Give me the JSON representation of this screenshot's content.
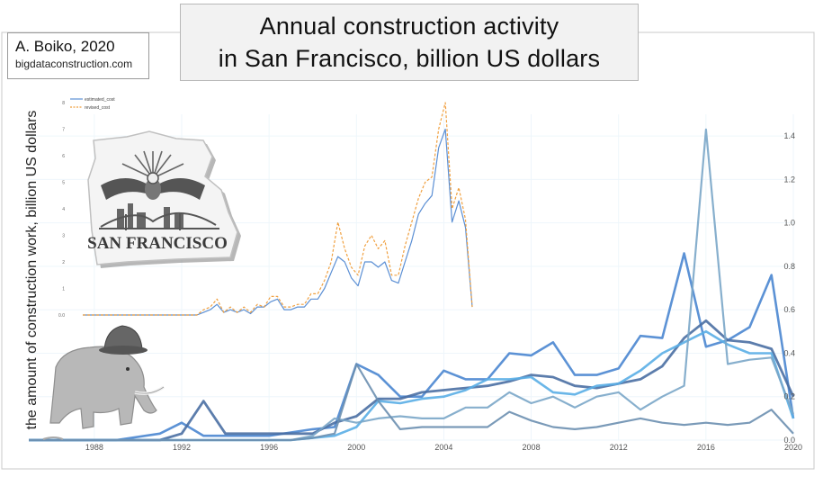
{
  "header": {
    "title_line1": "Annual construction activity",
    "title_line2": "in San Francisco, billion US dollars",
    "author": "A. Boiko, 2020",
    "website": "bigdataconstruction.com"
  },
  "logo_text": "SAN FRANCISCO",
  "colors": {
    "estimated": "#5b8fd4",
    "revised": "#f0a040",
    "series_a": "#4a86d0",
    "series_b": "#4a6fa3",
    "series_c": "#5aaee6",
    "series_d": "#7aa6c8",
    "series_e": "#6b8fb0"
  },
  "chart_data": [
    {
      "type": "line",
      "ylabel": "the amount of construction work, billion US dollars",
      "legend": [
        "estimated_cost",
        "revised_cost"
      ],
      "legend_position": "top-left",
      "ylim": [
        0,
        8
      ],
      "yticks": [
        0,
        1,
        2,
        3,
        4,
        5,
        6,
        7,
        8
      ],
      "ytick_labels": [
        "0.0",
        "1",
        "2",
        "3",
        "4",
        "5",
        "6",
        "7",
        "8"
      ],
      "series": [
        {
          "name": "estimated_cost",
          "style": "solid",
          "values": [
            0,
            0,
            0,
            0,
            0,
            0,
            0,
            0,
            0,
            0,
            0,
            0,
            0,
            0,
            0,
            0,
            0,
            0,
            0.1,
            0.2,
            0.4,
            0.1,
            0.2,
            0.1,
            0.2,
            0.05,
            0.3,
            0.3,
            0.5,
            0.6,
            0.2,
            0.2,
            0.3,
            0.3,
            0.6,
            0.6,
            1,
            1.6,
            2.2,
            2,
            1.4,
            1.1,
            2,
            2,
            1.8,
            2,
            1.3,
            1.2,
            2,
            2.8,
            3.8,
            4.2,
            4.5,
            6.3,
            7,
            3.5,
            4.3,
            3.3,
            0.3
          ]
        },
        {
          "name": "revised_cost",
          "style": "dashed",
          "values": [
            0,
            0,
            0,
            0,
            0,
            0,
            0,
            0,
            0,
            0,
            0,
            0,
            0,
            0,
            0,
            0,
            0,
            0,
            0.2,
            0.3,
            0.6,
            0.1,
            0.3,
            0.1,
            0.3,
            0.1,
            0.4,
            0.3,
            0.7,
            0.7,
            0.3,
            0.3,
            0.4,
            0.4,
            0.8,
            0.8,
            1.3,
            2,
            3.5,
            2.5,
            1.8,
            1.5,
            2.6,
            3,
            2.5,
            2.8,
            1.5,
            1.5,
            2.6,
            3.5,
            4.4,
            5,
            5.2,
            7,
            8,
            4,
            4.8,
            3.6,
            0.3
          ]
        }
      ]
    },
    {
      "type": "line",
      "xlim": [
        1985,
        2020
      ],
      "xticks": [
        1988,
        1992,
        1996,
        2000,
        2004,
        2008,
        2012,
        2016,
        2020
      ],
      "ylim": [
        0,
        1.5
      ],
      "yticks": [
        0,
        0.2,
        0.4,
        0.6,
        0.8,
        1.0,
        1.2,
        1.4
      ],
      "ytick_labels": [
        "0.0",
        "0.2",
        "0.4",
        "0.6",
        "0.8",
        "1.0",
        "1.2",
        "1.4"
      ],
      "series": [
        {
          "x": [
            1985,
            1987,
            1989,
            1991,
            1992,
            1993,
            1994,
            1996,
            1998,
            1999,
            2000,
            2001,
            2002,
            2003,
            2004,
            2005,
            2006,
            2007,
            2008,
            2009,
            2010,
            2011,
            2012,
            2013,
            2014,
            2015,
            2016,
            2017,
            2018,
            2019,
            2020
          ],
          "values": [
            0,
            0,
            0,
            0.03,
            0.08,
            0.02,
            0.02,
            0.02,
            0.05,
            0.06,
            0.35,
            0.3,
            0.2,
            0.2,
            0.32,
            0.28,
            0.28,
            0.4,
            0.39,
            0.45,
            0.3,
            0.3,
            0.33,
            0.48,
            0.47,
            0.86,
            0.43,
            0.46,
            0.52,
            0.76,
            0.1
          ]
        },
        {
          "x": [
            1985,
            1991,
            1992,
            1993,
            1994,
            1998,
            1999,
            2000,
            2001,
            2002,
            2003,
            2004,
            2005,
            2006,
            2007,
            2008,
            2009,
            2010,
            2011,
            2012,
            2013,
            2014,
            2015,
            2016,
            2017,
            2018,
            2019,
            2020
          ],
          "values": [
            0,
            0,
            0.03,
            0.18,
            0.03,
            0.03,
            0.08,
            0.11,
            0.19,
            0.19,
            0.22,
            0.23,
            0.24,
            0.25,
            0.27,
            0.3,
            0.29,
            0.25,
            0.24,
            0.26,
            0.28,
            0.34,
            0.47,
            0.55,
            0.46,
            0.45,
            0.42,
            0.2
          ]
        },
        {
          "x": [
            1985,
            1997,
            1998,
            1999,
            2000,
            2001,
            2002,
            2003,
            2004,
            2005,
            2006,
            2007,
            2008,
            2009,
            2010,
            2011,
            2012,
            2013,
            2014,
            2015,
            2016,
            2017,
            2018,
            2019,
            2020
          ],
          "values": [
            0,
            0,
            0.01,
            0.02,
            0.06,
            0.18,
            0.17,
            0.19,
            0.2,
            0.23,
            0.28,
            0.28,
            0.29,
            0.22,
            0.21,
            0.25,
            0.26,
            0.32,
            0.4,
            0.45,
            0.5,
            0.44,
            0.4,
            0.4,
            0.1
          ]
        },
        {
          "x": [
            1985,
            1997,
            1998,
            1999,
            2000,
            2001,
            2002,
            2003,
            2004,
            2005,
            2006,
            2007,
            2008,
            2009,
            2010,
            2011,
            2012,
            2013,
            2014,
            2015,
            2016,
            2017,
            2018,
            2019,
            2020
          ],
          "values": [
            0,
            0,
            0.02,
            0.1,
            0.08,
            0.1,
            0.11,
            0.1,
            0.1,
            0.15,
            0.15,
            0.22,
            0.17,
            0.2,
            0.15,
            0.2,
            0.22,
            0.14,
            0.2,
            0.25,
            1.43,
            0.35,
            0.37,
            0.38,
            0.12
          ]
        },
        {
          "x": [
            1985,
            1997,
            1998,
            1999,
            2000,
            2001,
            2002,
            2003,
            2004,
            2005,
            2006,
            2007,
            2008,
            2009,
            2010,
            2011,
            2012,
            2013,
            2014,
            2015,
            2016,
            2017,
            2018,
            2019,
            2020
          ],
          "values": [
            0,
            0,
            0.01,
            0.03,
            0.35,
            0.18,
            0.05,
            0.06,
            0.06,
            0.06,
            0.06,
            0.13,
            0.09,
            0.06,
            0.05,
            0.06,
            0.08,
            0.1,
            0.08,
            0.07,
            0.08,
            0.07,
            0.08,
            0.14,
            0.03
          ]
        }
      ]
    }
  ]
}
